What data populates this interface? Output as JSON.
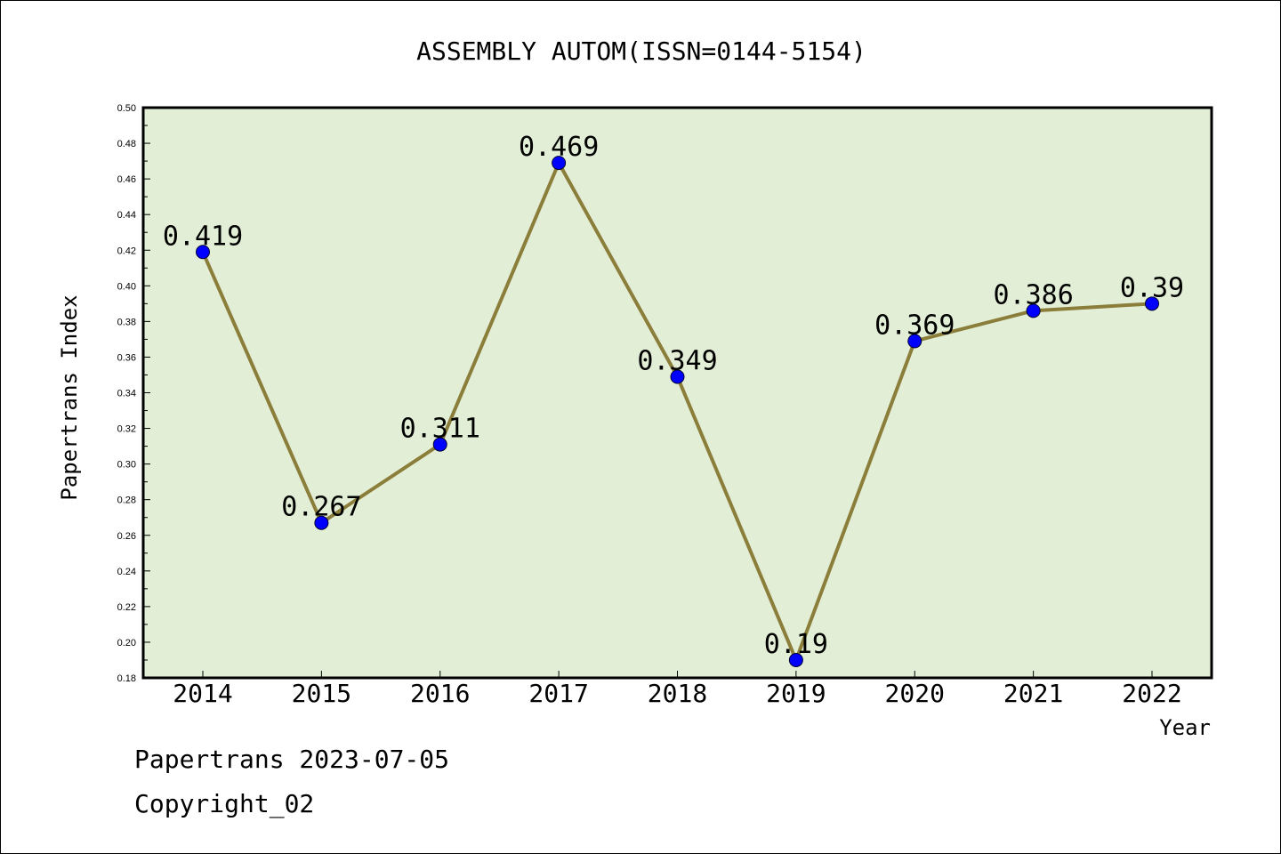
{
  "chart_data": {
    "type": "line",
    "title": "ASSEMBLY AUTOM(ISSN=0144-5154)",
    "xlabel": "Year",
    "ylabel": "Papertrans Index",
    "categories": [
      "2014",
      "2015",
      "2016",
      "2017",
      "2018",
      "2019",
      "2020",
      "2021",
      "2022"
    ],
    "values": [
      0.419,
      0.267,
      0.311,
      0.469,
      0.349,
      0.19,
      0.369,
      0.386,
      0.39
    ],
    "data_labels": [
      "0.419",
      "0.267",
      "0.311",
      "0.469",
      "0.349",
      "0.19",
      "0.369",
      "0.386",
      "0.39"
    ],
    "ylim": [
      0.18,
      0.5
    ],
    "yticks": [
      "0.18",
      "0.20",
      "0.22",
      "0.24",
      "0.26",
      "0.28",
      "0.30",
      "0.32",
      "0.34",
      "0.36",
      "0.38",
      "0.40",
      "0.42",
      "0.44",
      "0.46",
      "0.48",
      "0.50"
    ],
    "grid": false,
    "colors": {
      "plot_background": "#e2efd6",
      "line": "#8b7d3a",
      "marker": "#0000ff"
    }
  },
  "footer": {
    "line1": "Papertrans 2023-07-05",
    "line2": "Copyright_02"
  }
}
